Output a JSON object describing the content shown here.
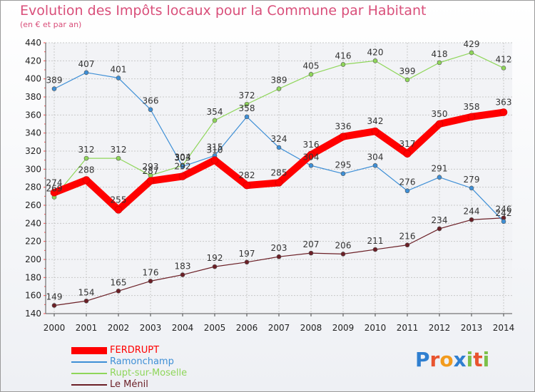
{
  "header": {
    "title": "Evolution des Impôts locaux pour la Commune par Habitant",
    "subtitle": "(en € et par an)"
  },
  "logo": {
    "text": "Proxiti"
  },
  "chart_data": {
    "type": "line",
    "title": "Evolution des Impôts locaux pour la Commune par Habitant",
    "subtitle": "(en € et par an)",
    "x": [
      "2000",
      "2001",
      "2002",
      "2003",
      "2004",
      "2005",
      "2006",
      "2007",
      "2008",
      "2009",
      "2010",
      "2011",
      "2012",
      "2013",
      "2014"
    ],
    "ylim": [
      140,
      440
    ],
    "yticks": [
      140,
      160,
      180,
      200,
      220,
      240,
      260,
      280,
      300,
      320,
      340,
      360,
      380,
      400,
      420,
      440
    ],
    "grid": true,
    "legend_position": "bottom-left",
    "series": [
      {
        "name": "FERDRUPT",
        "color": "#ff0000",
        "values": [
          274,
          288,
          255,
          287,
          292,
          310,
          282,
          285,
          316,
          336,
          342,
          317,
          350,
          358,
          363
        ]
      },
      {
        "name": "Ramonchamp",
        "color": "#3e8fd6",
        "values": [
          389,
          407,
          401,
          366,
          303,
          315,
          358,
          324,
          304,
          295,
          304,
          276,
          291,
          279,
          242
        ]
      },
      {
        "name": "Rupt-sur-Moselle",
        "color": "#8fd65a",
        "values": [
          269,
          312,
          312,
          293,
          304,
          354,
          372,
          389,
          405,
          416,
          420,
          399,
          418,
          429,
          412
        ]
      },
      {
        "name": "Le Ménil",
        "color": "#6b1f26",
        "values": [
          149,
          154,
          165,
          176,
          183,
          192,
          197,
          203,
          207,
          206,
          211,
          216,
          234,
          244,
          246
        ]
      }
    ]
  }
}
